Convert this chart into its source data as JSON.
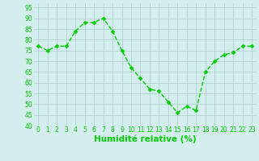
{
  "x": [
    0,
    1,
    2,
    3,
    4,
    5,
    6,
    7,
    8,
    9,
    10,
    11,
    12,
    13,
    14,
    15,
    16,
    17,
    18,
    19,
    20,
    21,
    22,
    23
  ],
  "y": [
    77,
    75,
    77,
    77,
    84,
    88,
    88,
    90,
    84,
    75,
    67,
    62,
    57,
    56,
    51,
    46,
    49,
    47,
    65,
    70,
    73,
    74,
    77,
    77
  ],
  "line_color": "#00cc00",
  "marker_color": "#00cc00",
  "bg_color": "#d4eeee",
  "grid_color": "#aacccc",
  "xlabel": "Humidité relative (%)",
  "xlabel_color": "#00cc00",
  "ylim": [
    40,
    97
  ],
  "yticks": [
    40,
    45,
    50,
    55,
    60,
    65,
    70,
    75,
    80,
    85,
    90,
    95
  ],
  "xticks": [
    0,
    1,
    2,
    3,
    4,
    5,
    6,
    7,
    8,
    9,
    10,
    11,
    12,
    13,
    14,
    15,
    16,
    17,
    18,
    19,
    20,
    21,
    22,
    23
  ],
  "tick_color": "#00cc00",
  "tick_fontsize": 5.5,
  "xlabel_fontsize": 7.5,
  "marker_size": 2.5,
  "line_width": 1.0
}
